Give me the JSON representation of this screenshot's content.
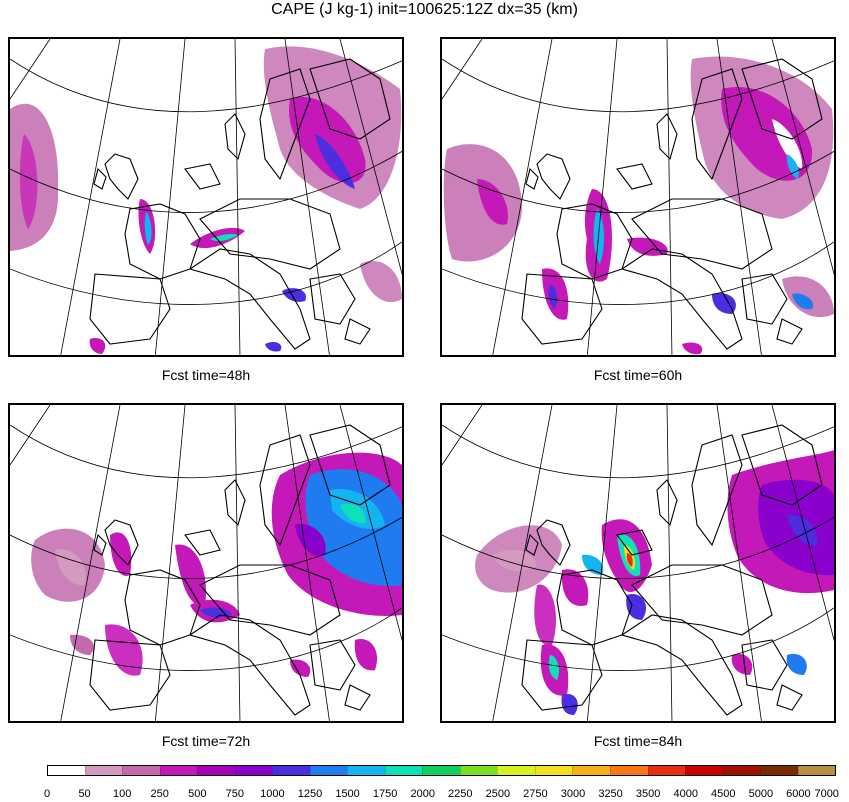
{
  "title": "CAPE (J kg-1) init=100625:12Z dx=35 (km)",
  "panels": [
    {
      "caption": "Fcst time=48h"
    },
    {
      "caption": "Fcst time=60h"
    },
    {
      "caption": "Fcst time=72h"
    },
    {
      "caption": "Fcst time=84h"
    }
  ],
  "colorbar": {
    "labels": [
      "0",
      "50",
      "100",
      "250",
      "500",
      "750",
      "1000",
      "1250",
      "1500",
      "1750",
      "2000",
      "2250",
      "2500",
      "2750",
      "3000",
      "3250",
      "3500",
      "4000",
      "4500",
      "5000",
      "6000",
      "7000"
    ],
    "colors": [
      "#ffffff",
      "#d59ac0",
      "#c26aad",
      "#c418b8",
      "#a800b8",
      "#8a00cc",
      "#4a2ee0",
      "#1f7cf0",
      "#14b4f0",
      "#10e0b8",
      "#10d060",
      "#78e020",
      "#d8f020",
      "#f0e020",
      "#f8b018",
      "#f87818",
      "#e83010",
      "#c80000",
      "#a01000",
      "#7a2a00",
      "#b89040"
    ]
  }
}
